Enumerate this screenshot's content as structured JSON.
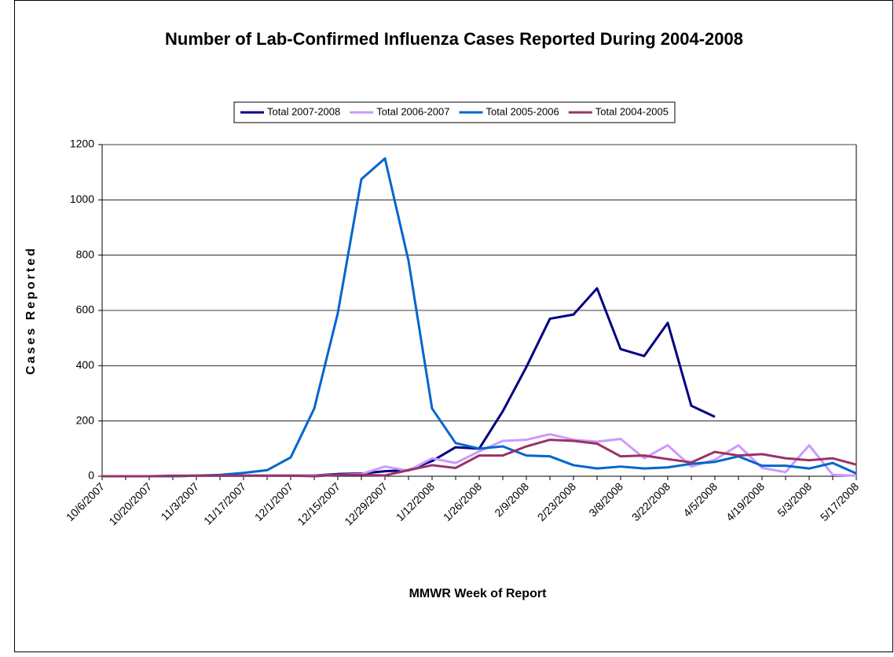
{
  "chart_data": {
    "type": "line",
    "title": "Number of Lab-Confirmed Influenza Cases Reported During 2004-2008",
    "x_label": "MMWR Week of Report",
    "y_label": "Cases Reported",
    "categories": [
      "10/6/2007",
      null,
      "10/20/2007",
      null,
      "11/3/2007",
      null,
      "11/17/2007",
      null,
      "12/1/2007",
      null,
      "12/15/2007",
      null,
      "12/29/2007",
      null,
      "1/12/2008",
      null,
      "1/26/2008",
      null,
      "2/9/2008",
      null,
      "2/23/2008",
      null,
      "3/8/2008",
      null,
      "3/22/2008",
      null,
      "4/5/2008",
      null,
      "4/19/2008",
      null,
      "5/3/2008",
      null,
      "5/17/2008"
    ],
    "series": [
      {
        "name": "Total 2007-2008",
        "color": "#000080",
        "values": [
          0,
          0,
          0,
          0,
          2,
          2,
          2,
          2,
          2,
          3,
          8,
          10,
          18,
          22,
          55,
          105,
          100,
          235,
          395,
          570,
          585,
          680,
          460,
          435,
          555,
          255,
          215,
          null,
          null,
          null,
          null,
          null,
          null
        ]
      },
      {
        "name": "Total 2006-2007",
        "color": "#cc99ff",
        "values": [
          0,
          0,
          0,
          0,
          2,
          2,
          2,
          2,
          2,
          2,
          5,
          8,
          35,
          20,
          65,
          48,
          90,
          128,
          132,
          152,
          132,
          125,
          135,
          65,
          112,
          35,
          60,
          112,
          30,
          15,
          112,
          5,
          2
        ]
      },
      {
        "name": "Total 2005-2006",
        "color": "#0066cc",
        "values": [
          0,
          0,
          0,
          0,
          2,
          5,
          12,
          22,
          68,
          245,
          590,
          1075,
          1150,
          780,
          245,
          120,
          100,
          108,
          75,
          72,
          40,
          28,
          35,
          28,
          32,
          45,
          52,
          72,
          38,
          38,
          28,
          48,
          10
        ]
      },
      {
        "name": "Total 2004-2005",
        "color": "#993366",
        "values": [
          0,
          0,
          0,
          2,
          2,
          2,
          2,
          2,
          2,
          0,
          5,
          5,
          3,
          22,
          40,
          30,
          75,
          75,
          108,
          132,
          128,
          118,
          72,
          75,
          62,
          50,
          88,
          75,
          80,
          65,
          58,
          65,
          42
        ]
      }
    ],
    "ylim": [
      0,
      1200
    ],
    "yticks": [
      0,
      200,
      400,
      600,
      800,
      1000,
      1200
    ],
    "grid": true,
    "legend": "top"
  }
}
